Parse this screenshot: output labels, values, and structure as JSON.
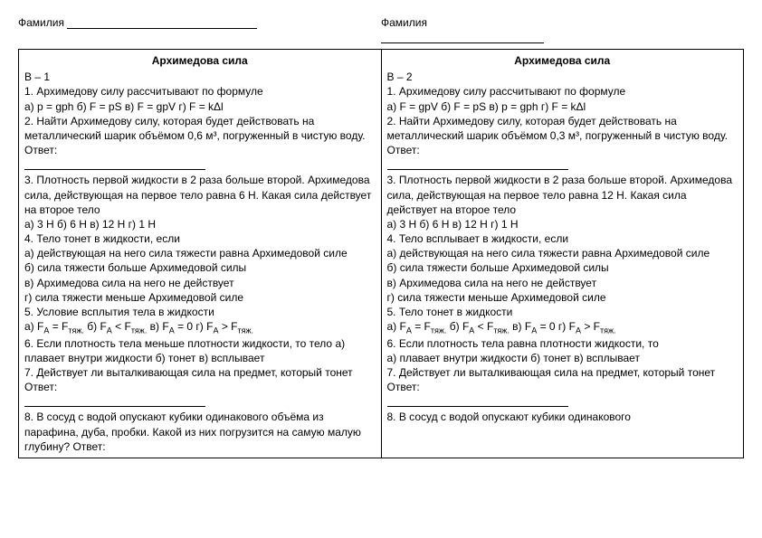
{
  "header": {
    "surname_label": "Фамилия"
  },
  "left": {
    "title": "Архимедова сила",
    "variant": "В – 1",
    "q1": "1. Архимедову силу рассчитывают по формуле",
    "q1_opts": "а) p = gph      б) F = pS        в) F =  gpV   г) F = kΔl",
    "q2": "2. Найти Архимедову силу, которая будет действовать на металлический шарик объёмом 0,6 м³, погруженный в чистую воду.    Ответ:",
    "q3": "3. Плотность первой жидкости в 2 раза больше второй. Архимедова сила, действующая на первое тело равна 6 Н. Какая сила действует на второе тело",
    "q3_opts": "а) 3 Н      б) 6 Н        в) 12 Н   г) 1 Н",
    "q4": "4. Тело тонет в жидкости, если",
    "q4a": "а) действующая на него сила тяжести равна Архимедовой силе",
    "q4b": "б) сила тяжести больше Архимедовой силы",
    "q4c": "в) Архимедова сила на него не действует",
    "q4d": "г) сила тяжести меньше Архимедовой силе",
    "q5": "5. Условие всплытия тела в жидкости",
    "q5_opts_a": "а) F",
    "q5_opts_eq": " = F",
    "q5_opts_b": "     б) F",
    "q5_opts_lt": " < F",
    "q5_opts_c": "        в) F",
    "q5_opts_z": " = 0   г) F",
    "q5_opts_gt": " > F",
    "q6": "6. Если плотность тела меньше плотности жидкости, то тело       а) плавает внутри жидкости   б) тонет    в) всплывает",
    "q7": "7. Действует ли выталкивающая сила на предмет, который тонет       Ответ:",
    "q8": "8. В сосуд с водой опускают кубики одинакового объёма из парафина, дуба, пробки. Какой из них погрузится на самую малую глубину?  Ответ:"
  },
  "right": {
    "title": "Архимедова сила",
    "variant": "В – 2",
    "q1": "1. Архимедову силу рассчитывают по формуле",
    "q1_opts": "а) F =  gpV   б) F = pS       в) p = gph        г) F = kΔl",
    "q2": "2. Найти Архимедову силу, которая будет действовать на металлический шарик объёмом 0,3 м³, погруженный в чистую воду.    Ответ:",
    "q3": "3. Плотность первой жидкости в 2 раза больше второй. Архимедова сила, действующая на первое тело равна 12 Н. Какая сила действует на второе тело",
    "q3_opts": "а) 3 Н      б) 6 Н        в) 12 Н   г) 1 Н",
    "q4": "4. Тело всплывает  в жидкости, если",
    "q4a": "а) действующая на него сила тяжести равна Архимедовой силе",
    "q4b": "б) сила тяжести больше Архимедовой силы",
    "q4c": "в) Архимедова сила на него не действует",
    "q4d": "г) сила тяжести меньше Архимедовой силе",
    "q5": "5. Тело тонет  в жидкости",
    "q6": "6. Если плотность тела равна плотности жидкости, то",
    "q6_opts": "а) плавает внутри жидкости     б) тонет    в) всплывает",
    "q7": "7. Действует ли выталкивающая сила на предмет, который тонет       Ответ:",
    "q8": "8. В сосуд с водой опускают кубики одинакового"
  },
  "subscripts": {
    "A": "A",
    "tyazh": "тяж."
  }
}
